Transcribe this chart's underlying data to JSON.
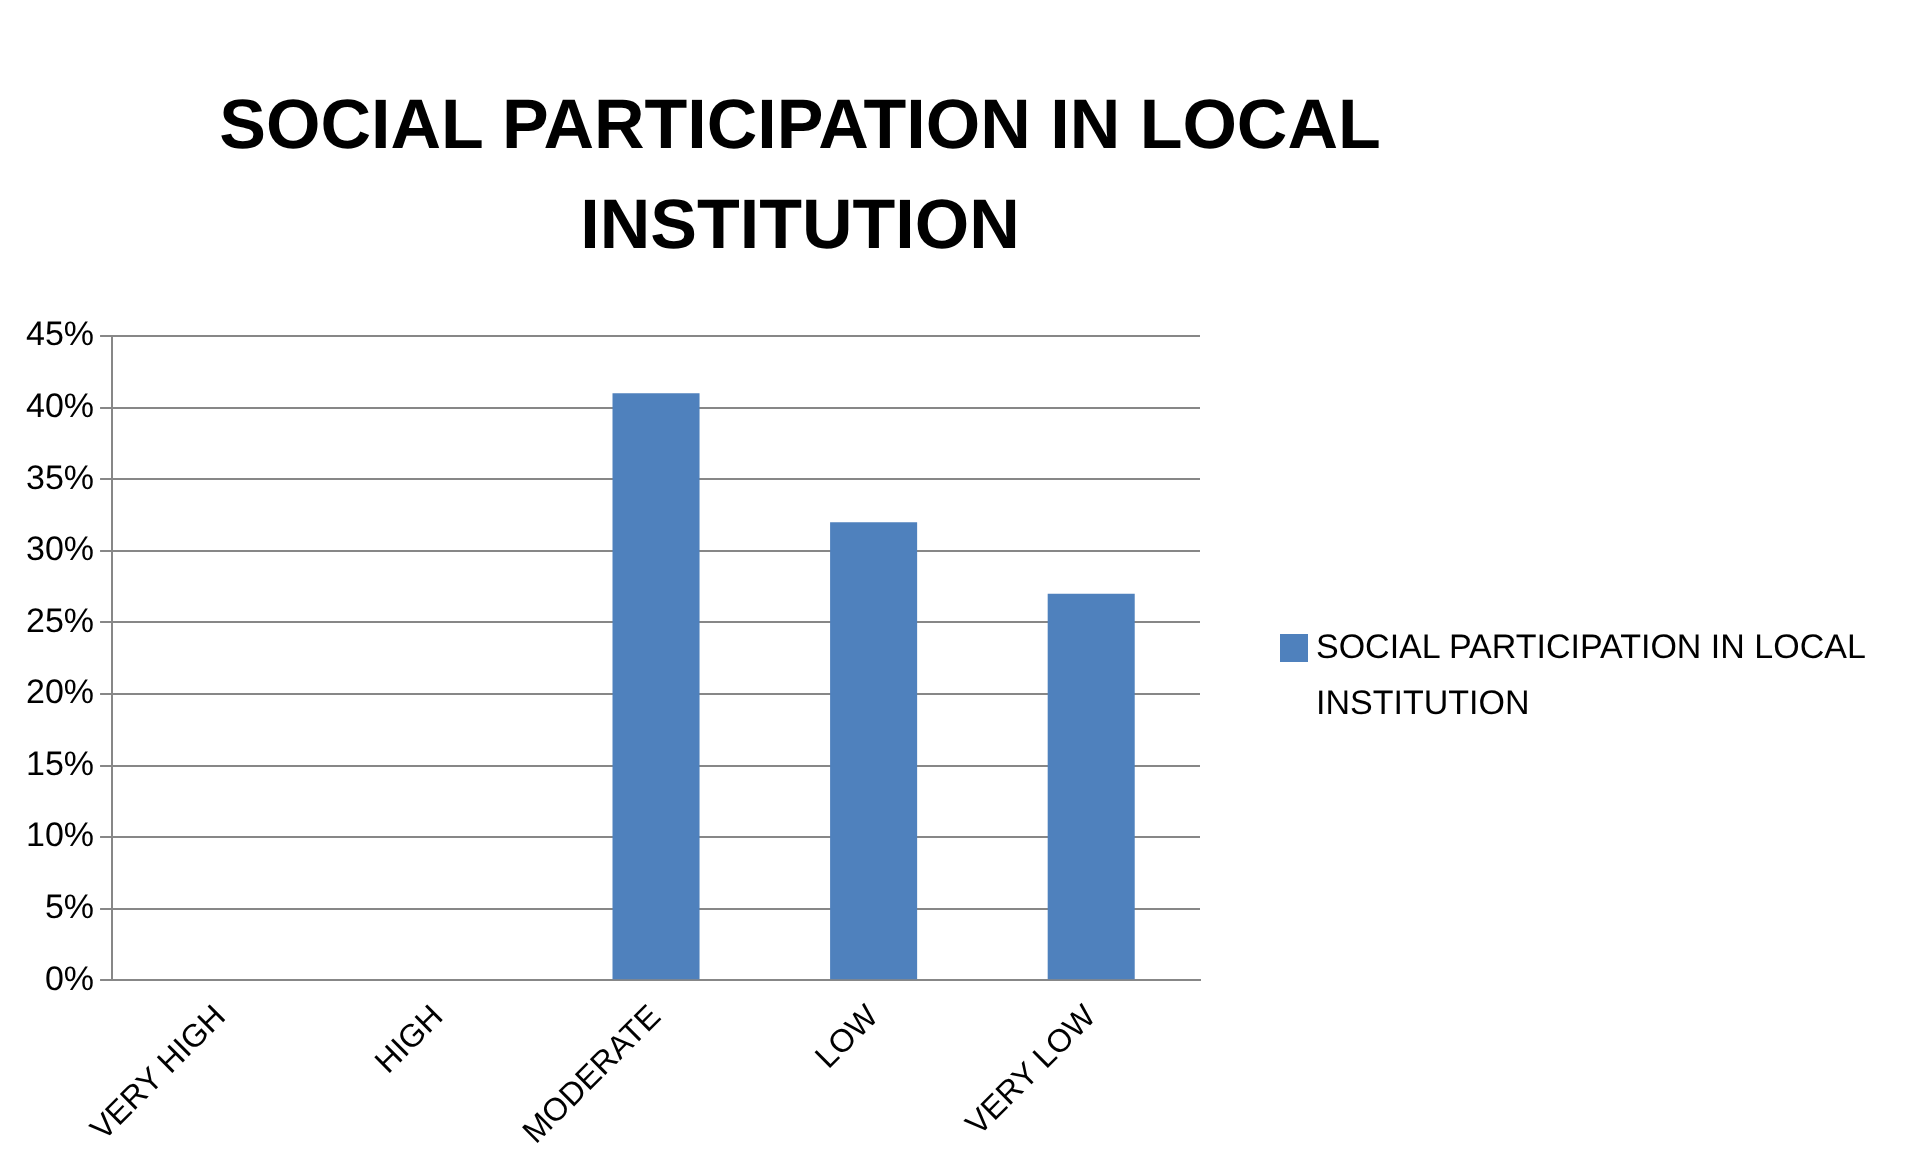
{
  "chart_data": {
    "type": "bar",
    "title": "SOCIAL PARTICIPATION IN LOCAL INSTITUTION",
    "categories": [
      "VERY HIGH",
      "HIGH",
      "MODERATE",
      "LOW",
      "VERY LOW"
    ],
    "series": [
      {
        "name": "SOCIAL PARTICIPATION IN LOCAL INSTITUTION",
        "color": "#4f81bd",
        "values": [
          0,
          0,
          41,
          32,
          27
        ]
      }
    ],
    "ylim": [
      0,
      45
    ],
    "yticks": [
      {
        "value": 0,
        "label": "0%"
      },
      {
        "value": 5,
        "label": "5%"
      },
      {
        "value": 10,
        "label": "10%"
      },
      {
        "value": 15,
        "label": "15%"
      },
      {
        "value": 20,
        "label": "20%"
      },
      {
        "value": 25,
        "label": "25%"
      },
      {
        "value": 30,
        "label": "30%"
      },
      {
        "value": 35,
        "label": "35%"
      },
      {
        "value": 40,
        "label": "40%"
      },
      {
        "value": 45,
        "label": "45%"
      }
    ],
    "grid": "y",
    "legend": "right"
  }
}
